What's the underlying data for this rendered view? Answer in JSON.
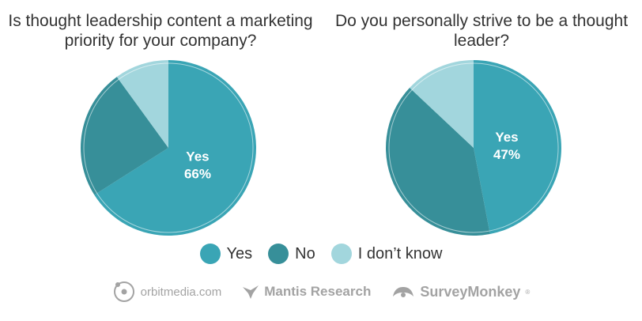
{
  "colors": {
    "yes": "#3aa5b5",
    "no": "#378f99",
    "dont_know": "#a2d6dd"
  },
  "chart_data": [
    {
      "type": "pie",
      "title": "Is thought leadership content a marketing priority for your company?",
      "slices": [
        {
          "name": "Yes",
          "value": 66,
          "label": "Yes",
          "value_label": "66%"
        },
        {
          "name": "No",
          "value": 24
        },
        {
          "name": "I don't know",
          "value": 10
        }
      ]
    },
    {
      "type": "pie",
      "title": "Do you personally strive to be a thought leader?",
      "slices": [
        {
          "name": "Yes",
          "value": 47,
          "label": "Yes",
          "value_label": "47%"
        },
        {
          "name": "No",
          "value": 40
        },
        {
          "name": "I don't know",
          "value": 13
        }
      ]
    }
  ],
  "legend": {
    "yes": "Yes",
    "no": "No",
    "dont_know": "I don’t know"
  },
  "logos": {
    "orbit": "orbitmedia.com",
    "mantis": "Mantis Research",
    "survey": "SurveyMonkey",
    "survey_mark": "®"
  }
}
